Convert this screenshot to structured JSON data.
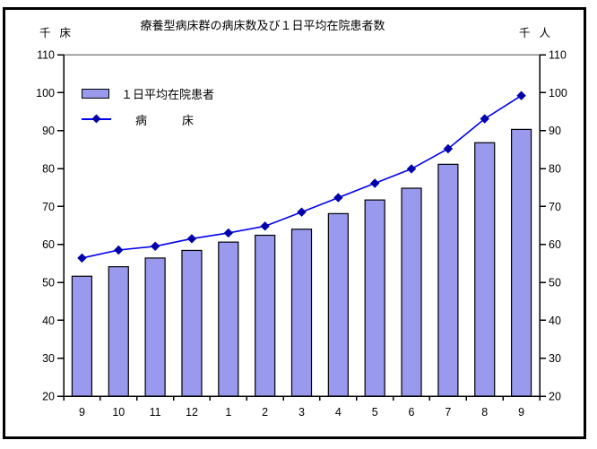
{
  "title": "療養型病床群の病床数及び１日平均在院患者数",
  "left_axis": {
    "unit": "千床",
    "ticks": [
      "110",
      "100",
      "90",
      "80",
      "70",
      "60",
      "50",
      "40",
      "30",
      "20"
    ]
  },
  "right_axis": {
    "unit": "千人",
    "ticks": [
      "110",
      "100",
      "90",
      "80",
      "70",
      "60",
      "50",
      "40",
      "30",
      "20"
    ]
  },
  "x_axis": {
    "labels": [
      "9",
      "10",
      "11",
      "12",
      "1",
      "2",
      "3",
      "4",
      "5",
      "6",
      "7",
      "8",
      "9"
    ]
  },
  "legend": {
    "bar_label": "１日平均在院患者",
    "line_label": "病　　　床"
  },
  "colors": {
    "bar_fill": "#9999ee",
    "bar_border": "#000000",
    "line": "#0000ee",
    "marker": "#0000aa",
    "axis": "#000000",
    "plot_top_border": "#888888",
    "background": "#ffffff"
  },
  "chart_data": {
    "type": "bar",
    "title": "療養型病床群の病床数及び１日平均在院患者数",
    "categories": [
      "9",
      "10",
      "11",
      "12",
      "1",
      "2",
      "3",
      "4",
      "5",
      "6",
      "7",
      "8",
      "9"
    ],
    "series": [
      {
        "name": "１日平均在院患者",
        "type": "bar",
        "axis_unit": "千人",
        "values": [
          51.6,
          54.1,
          56.4,
          58.4,
          60.6,
          62.4,
          64.0,
          68.1,
          71.7,
          74.8,
          81.1,
          86.8,
          90.3
        ]
      },
      {
        "name": "病床",
        "type": "line",
        "axis_unit": "千床",
        "values": [
          56.4,
          58.5,
          59.5,
          61.5,
          63.0,
          64.8,
          68.5,
          72.3,
          76.1,
          79.9,
          85.2,
          93.1,
          99.2
        ]
      }
    ],
    "ylim": [
      20,
      110
    ],
    "ytick_step": 10,
    "left_axis_unit": "千床",
    "right_axis_unit": "千人",
    "grid": false,
    "legend_position": "upper-left-inside"
  }
}
